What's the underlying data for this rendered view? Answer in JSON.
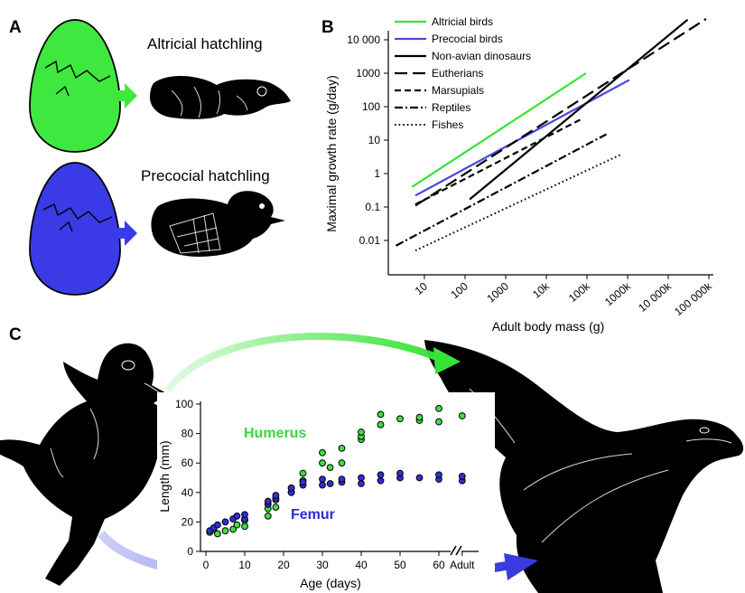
{
  "panels": {
    "a": {
      "label": "A",
      "altricial_title": "Altricial hatchling",
      "precocial_title": "Precocial hatchling",
      "colors": {
        "altricial": "#3fe83f",
        "precocial": "#3a3ae6"
      }
    },
    "b": {
      "label": "B"
    },
    "c": {
      "label": "C"
    }
  },
  "chart_data": [
    {
      "type": "line",
      "scale": "log-log",
      "xlabel": "Adult body mass (g)",
      "ylabel": "Maximal growth rate (g/day)",
      "x_ticks": [
        {
          "value": 10,
          "label": "10"
        },
        {
          "value": 100,
          "label": "100"
        },
        {
          "value": 1000,
          "label": "1000"
        },
        {
          "value": 10000,
          "label": "10k"
        },
        {
          "value": 100000,
          "label": "100k"
        },
        {
          "value": 1000000,
          "label": "1000k"
        },
        {
          "value": 10000000,
          "label": "10 000k"
        },
        {
          "value": 100000000,
          "label": "100 000k"
        }
      ],
      "y_ticks": [
        {
          "value": 0.01,
          "label": "0.01"
        },
        {
          "value": 0.1,
          "label": "0.1"
        },
        {
          "value": 1,
          "label": "1"
        },
        {
          "value": 10,
          "label": "10"
        },
        {
          "value": 100,
          "label": "100"
        },
        {
          "value": 1000,
          "label": "1000"
        },
        {
          "value": 10000,
          "label": "10 000"
        }
      ],
      "legend_position": "top-left",
      "series": [
        {
          "name": "Altricial birds",
          "color": "#33e533",
          "style": "solid",
          "points": [
            [
              5,
              0.4
            ],
            [
              95000,
              1000
            ]
          ]
        },
        {
          "name": "Precocial birds",
          "color": "#4646e0",
          "style": "solid",
          "points": [
            [
              6,
              0.22
            ],
            [
              1100000,
              630
            ]
          ]
        },
        {
          "name": "Non-avian dinosaurs",
          "color": "#000000",
          "style": "solid",
          "points": [
            [
              130,
              0.17
            ],
            [
              30000000,
              40000
            ]
          ]
        },
        {
          "name": "Eutherians",
          "color": "#000000",
          "style": "long-dash",
          "points": [
            [
              6,
              0.11
            ],
            [
              85000000,
              42000
            ]
          ]
        },
        {
          "name": "Marsupials",
          "color": "#000000",
          "style": "dash",
          "points": [
            [
              6,
              0.12
            ],
            [
              80000,
              45
            ]
          ]
        },
        {
          "name": "Reptiles",
          "color": "#000000",
          "style": "dash-dot",
          "points": [
            [
              2,
              0.007
            ],
            [
              300000,
              15
            ]
          ]
        },
        {
          "name": "Fishes",
          "color": "#000000",
          "style": "dotted",
          "points": [
            [
              6,
              0.005
            ],
            [
              650000,
              3.6
            ]
          ]
        }
      ]
    },
    {
      "type": "scatter",
      "xlabel": "Age (days)",
      "ylabel": "Length (mm)",
      "xlim": [
        0,
        66
      ],
      "ylim": [
        0,
        100
      ],
      "x_ticks": [
        {
          "value": 0,
          "label": "0"
        },
        {
          "value": 10,
          "label": "10"
        },
        {
          "value": 20,
          "label": "20"
        },
        {
          "value": 30,
          "label": "30"
        },
        {
          "value": 40,
          "label": "40"
        },
        {
          "value": 50,
          "label": "50"
        },
        {
          "value": 60,
          "label": "60"
        },
        {
          "value": 66,
          "label": "Adult"
        }
      ],
      "y_ticks": [
        0,
        20,
        40,
        60,
        80,
        100
      ],
      "axis_break": true,
      "series": [
        {
          "name": "Humerus",
          "color": "#3fe03f",
          "points": [
            [
              1,
              13
            ],
            [
              2,
              15
            ],
            [
              3,
              12
            ],
            [
              5,
              14
            ],
            [
              7,
              15
            ],
            [
              8,
              18
            ],
            [
              10,
              17
            ],
            [
              10,
              21
            ],
            [
              16,
              24
            ],
            [
              16,
              29
            ],
            [
              18,
              30
            ],
            [
              18,
              35
            ],
            [
              22,
              40
            ],
            [
              22,
              43
            ],
            [
              25,
              48
            ],
            [
              25,
              53
            ],
            [
              30,
              60
            ],
            [
              30,
              67
            ],
            [
              32,
              57
            ],
            [
              35,
              60
            ],
            [
              35,
              70
            ],
            [
              40,
              76
            ],
            [
              40,
              78
            ],
            [
              40,
              81
            ],
            [
              45,
              86
            ],
            [
              45,
              93
            ],
            [
              50,
              90
            ],
            [
              55,
              89
            ],
            [
              55,
              91
            ],
            [
              60,
              88
            ],
            [
              60,
              97
            ],
            [
              66,
              92
            ]
          ]
        },
        {
          "name": "Femur",
          "color": "#2f2fd9",
          "points": [
            [
              1,
              14
            ],
            [
              2,
              16
            ],
            [
              3,
              18
            ],
            [
              5,
              20
            ],
            [
              7,
              22
            ],
            [
              8,
              24
            ],
            [
              10,
              22
            ],
            [
              10,
              25
            ],
            [
              16,
              32
            ],
            [
              16,
              34
            ],
            [
              18,
              36
            ],
            [
              18,
              38
            ],
            [
              22,
              40
            ],
            [
              22,
              43
            ],
            [
              25,
              45
            ],
            [
              25,
              47
            ],
            [
              30,
              45
            ],
            [
              30,
              49
            ],
            [
              32,
              46
            ],
            [
              35,
              47
            ],
            [
              35,
              49
            ],
            [
              40,
              46
            ],
            [
              40,
              50
            ],
            [
              45,
              48
            ],
            [
              45,
              52
            ],
            [
              50,
              50
            ],
            [
              50,
              53
            ],
            [
              55,
              50
            ],
            [
              60,
              49
            ],
            [
              60,
              52
            ],
            [
              66,
              48
            ],
            [
              66,
              51
            ]
          ]
        }
      ]
    }
  ]
}
